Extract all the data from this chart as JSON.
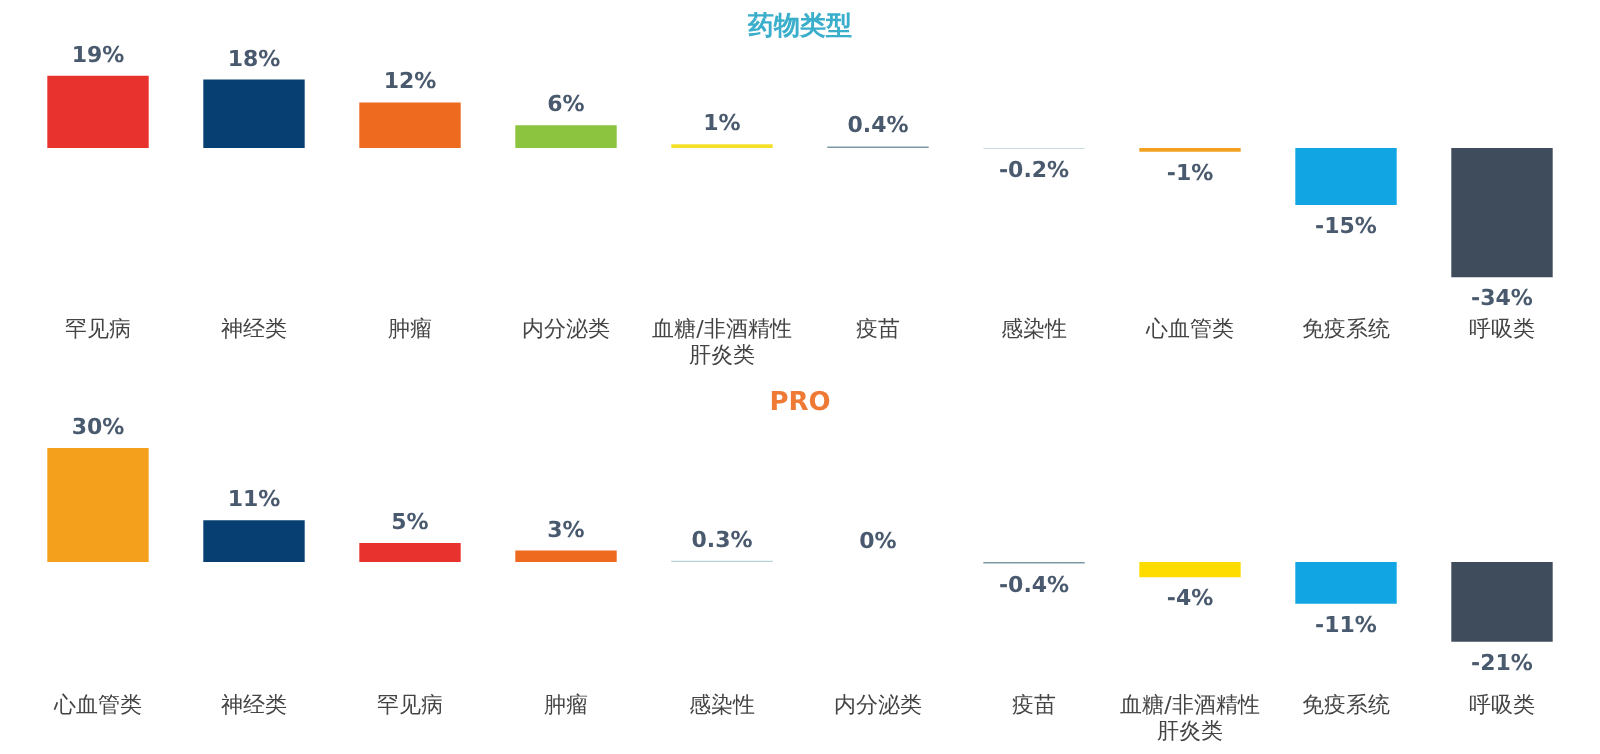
{
  "chart_data": [
    {
      "type": "bar",
      "title": "药物类型",
      "categories": [
        "罕见病",
        "神经类",
        "肿瘤",
        "内分泌类",
        "血糖/非酒精性肝炎类",
        "疫苗",
        "感染性",
        "心血管类",
        "免疫系统",
        "呼吸类"
      ],
      "values": [
        19,
        18,
        12,
        6,
        1,
        0.4,
        -0.2,
        -1,
        -15,
        -34
      ],
      "value_labels": [
        "19%",
        "18%",
        "12%",
        "6%",
        "1%",
        "0.4%",
        "-0.2%",
        "-1%",
        "-15%",
        "-34%"
      ],
      "colors": [
        "#e8322e",
        "#083f73",
        "#ee6a1f",
        "#8cc43f",
        "#f4e02a",
        "#7a9aa8",
        "#b9d2d6",
        "#f2a020",
        "#11a6e3",
        "#3f4c5c"
      ]
    },
    {
      "type": "bar",
      "title": "PRO",
      "categories": [
        "心血管类",
        "神经类",
        "罕见病",
        "肿瘤",
        "感染性",
        "内分泌类",
        "疫苗",
        "血糖/非酒精性肝炎类",
        "免疫系统",
        "呼吸类"
      ],
      "values": [
        30,
        11,
        5,
        3,
        0.3,
        0,
        -0.4,
        -4,
        -11,
        -21
      ],
      "value_labels": [
        "30%",
        "11%",
        "5%",
        "3%",
        "0.3%",
        "0%",
        "-0.4%",
        "-4%",
        "-11%",
        "-21%"
      ],
      "colors": [
        "#f5a01d",
        "#083f73",
        "#e8322e",
        "#ee6a1f",
        "#b9d2d6",
        "#c9dbb0",
        "#7a9aa8",
        "#fedc00",
        "#11a6e3",
        "#3f4c5c"
      ]
    }
  ]
}
